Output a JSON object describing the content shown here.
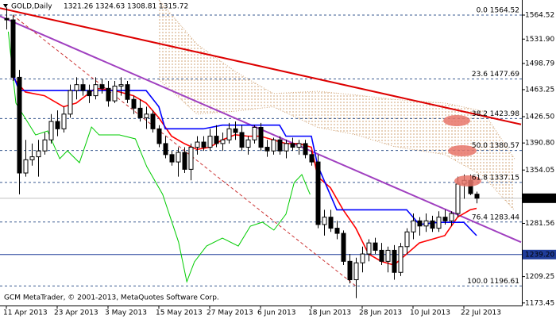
{
  "chart_data": {
    "type": "candlestick",
    "symbol": "GOLD,Daily",
    "footer": "GCM MetaTrader, © 2001-2013, MetaQuotes Software Corp.",
    "categories": [
      "11 Apr 2013",
      null,
      null,
      null,
      null,
      null,
      null,
      null,
      "23 Apr 2013",
      null,
      null,
      null,
      null,
      null,
      null,
      null,
      "3 May 2013",
      null,
      null,
      null,
      null,
      null,
      null,
      null,
      "15 May 2013",
      null,
      null,
      null,
      null,
      null,
      null,
      null,
      "27 May 2013",
      null,
      null,
      null,
      null,
      null,
      null,
      null,
      "6 Jun 2013",
      null,
      null,
      null,
      null,
      null,
      null,
      null,
      "18 Jun 2013",
      null,
      null,
      null,
      null,
      null,
      null,
      null,
      "28 Jun 2013",
      null,
      null,
      null,
      null,
      null,
      null,
      null,
      "10 Jul 2013",
      null,
      null,
      null,
      null,
      null,
      null,
      null,
      "22 Jul 2013",
      null,
      null
    ],
    "open": [
      1560,
      1558,
      1480,
      1350,
      1368,
      1372,
      1380,
      1395,
      1420,
      1410,
      1430,
      1462,
      1470,
      1462,
      1455,
      1470,
      1465,
      1448,
      1468,
      1470,
      1450,
      1438,
      1425,
      1430,
      1410,
      1390,
      1375,
      1365,
      1378,
      1355,
      1385,
      1392,
      1385,
      1400,
      1390,
      1395,
      1410,
      1405,
      1385,
      1395,
      1412,
      1385,
      1380,
      1395,
      1380,
      1390,
      1385,
      1390,
      1375,
      1365,
      1280,
      1290,
      1275,
      1268,
      1230,
      1205,
      1228,
      1240,
      1255,
      1245,
      1230,
      1245,
      1215,
      1250,
      1270,
      1285,
      1278,
      1285,
      1275,
      1290,
      1285,
      1295,
      1335,
      1340,
      1321.26
    ],
    "high": [
      1575,
      1565,
      1490,
      1395,
      1390,
      1395,
      1405,
      1430,
      1435,
      1440,
      1470,
      1480,
      1478,
      1470,
      1480,
      1478,
      1475,
      1475,
      1480,
      1475,
      1455,
      1450,
      1440,
      1435,
      1415,
      1400,
      1380,
      1385,
      1385,
      1390,
      1400,
      1400,
      1410,
      1415,
      1405,
      1418,
      1420,
      1415,
      1400,
      1415,
      1418,
      1395,
      1398,
      1400,
      1395,
      1398,
      1395,
      1395,
      1380,
      1375,
      1300,
      1300,
      1285,
      1272,
      1240,
      1235,
      1250,
      1260,
      1262,
      1255,
      1250,
      1252,
      1255,
      1275,
      1295,
      1290,
      1295,
      1292,
      1298,
      1300,
      1298,
      1345,
      1348,
      1348,
      1324.63
    ],
    "low": [
      1545,
      1475,
      1321,
      1345,
      1360,
      1345,
      1375,
      1390,
      1400,
      1405,
      1425,
      1450,
      1455,
      1445,
      1450,
      1458,
      1440,
      1445,
      1455,
      1445,
      1430,
      1420,
      1410,
      1405,
      1385,
      1370,
      1360,
      1345,
      1350,
      1340,
      1375,
      1380,
      1380,
      1385,
      1380,
      1390,
      1395,
      1380,
      1375,
      1390,
      1380,
      1372,
      1375,
      1375,
      1370,
      1380,
      1375,
      1370,
      1360,
      1275,
      1265,
      1270,
      1260,
      1225,
      1200,
      1180,
      1215,
      1230,
      1240,
      1225,
      1215,
      1205,
      1210,
      1240,
      1260,
      1265,
      1270,
      1270,
      1270,
      1280,
      1278,
      1290,
      1315,
      1320,
      1308.81
    ],
    "close": [
      1558,
      1480,
      1350,
      1368,
      1372,
      1380,
      1395,
      1420,
      1410,
      1430,
      1462,
      1470,
      1462,
      1455,
      1470,
      1465,
      1448,
      1468,
      1470,
      1450,
      1438,
      1425,
      1430,
      1410,
      1390,
      1375,
      1365,
      1378,
      1355,
      1385,
      1392,
      1385,
      1400,
      1390,
      1395,
      1410,
      1405,
      1385,
      1395,
      1412,
      1385,
      1380,
      1395,
      1380,
      1390,
      1385,
      1390,
      1375,
      1365,
      1280,
      1290,
      1275,
      1268,
      1230,
      1205,
      1228,
      1240,
      1255,
      1245,
      1230,
      1245,
      1215,
      1250,
      1270,
      1285,
      1278,
      1285,
      1275,
      1290,
      1285,
      1295,
      1335,
      1340,
      1322,
      1315.72
    ],
    "bull_color": "#ffffff",
    "bear_color": "#000000",
    "wick_color": "#000000",
    "ylim": [
      1170,
      1585
    ],
    "yticks": [
      1564.52,
      {
        "value": 1531.9,
        "label": "1531.90"
      },
      1498.79,
      1463.25,
      {
        "value": 1426.5,
        "label": "1426.50"
      },
      {
        "value": 1390.8,
        "label": "1390.80"
      },
      1354.05,
      1281.56,
      1209.25,
      1173.45
    ],
    "lines": [
      {
        "color": "#ff0000",
        "x": [
          1,
          3,
          6,
          9,
          11,
          14,
          17,
          20,
          22,
          24,
          26,
          28,
          30,
          32,
          34,
          36,
          38,
          40,
          42,
          44,
          46,
          48,
          49,
          51,
          53,
          55,
          57,
          59,
          61,
          63,
          65,
          67,
          69,
          71,
          73,
          74
        ],
        "values": [
          1480,
          1460,
          1455,
          1440,
          1445,
          1465,
          1462,
          1455,
          1445,
          1425,
          1400,
          1390,
          1382,
          1385,
          1395,
          1402,
          1400,
          1400,
          1395,
          1390,
          1390,
          1385,
          1345,
          1330,
          1300,
          1275,
          1240,
          1230,
          1225,
          1240,
          1255,
          1260,
          1265,
          1290,
          1300,
          1302
        ]
      },
      {
        "color": "#0000ff",
        "x": [
          1,
          2,
          10,
          14,
          17,
          22,
          24,
          25,
          31,
          34,
          43,
          44,
          48,
          49,
          52,
          56,
          63,
          65,
          68,
          70,
          72,
          74
        ],
        "values": [
          1485,
          1462,
          1462,
          1462,
          1462,
          1462,
          1440,
          1410,
          1410,
          1415,
          1415,
          1400,
          1400,
          1360,
          1300,
          1300,
          1300,
          1280,
          1283,
          1283,
          1283,
          1265
        ]
      },
      {
        "color": "#00cc00",
        "x": [
          0.3,
          1.5,
          4.6,
          6.5,
          8.4,
          9.6,
          11.5,
          13.4,
          14.6,
          17.8,
          20.3,
          22.1,
          24.6,
          27.1,
          28.4,
          29.6,
          31.5,
          34,
          36.5,
          38.4,
          40.3,
          42.1,
          44,
          45.3,
          46.5,
          47.8
        ],
        "values": [
          1541.9,
          1444.9,
          1401.7,
          1407.1,
          1369.4,
          1380.2,
          1364,
          1412.5,
          1401.7,
          1401.7,
          1396.4,
          1358.6,
          1320.9,
          1256.2,
          1202.3,
          1229.3,
          1250.8,
          1261.6,
          1250.8,
          1277.8,
          1283.2,
          1272.4,
          1294,
          1337.1,
          1347.8,
          1320.9
        ]
      }
    ],
    "cloud": {
      "color": "#d2a679",
      "x": [
        24,
        30,
        36,
        42,
        49,
        55,
        61,
        69,
        75,
        80
      ],
      "upper": [
        1585,
        1525,
        1488,
        1458,
        1461,
        1456,
        1450,
        1445,
        1434,
        1369
      ],
      "lower": [
        1477,
        1430,
        1434,
        1440,
        1412,
        1402,
        1386,
        1375,
        1346,
        1299
      ]
    },
    "trendlines": [
      {
        "color": "#dd0000",
        "width": 2,
        "x": [
          -1,
          81
        ],
        "values": [
          1574,
          1416
        ]
      },
      {
        "color": "#a040c0",
        "width": 2,
        "x": [
          -1,
          81
        ],
        "values": [
          1563,
          1256
        ]
      },
      {
        "color": "#cc3333",
        "width": 1,
        "dashed": true,
        "x": [
          1,
          55
        ],
        "values": [
          1564.52,
          1196.61
        ]
      }
    ],
    "fibo_color": "#3a5a90",
    "fibo": [
      {
        "value": 1564.52,
        "label": "0.0 1564.52"
      },
      {
        "value": 1477.69,
        "label": "23.6 1477.69"
      },
      {
        "value": 1423.98,
        "label": "38.2 1423.98"
      },
      {
        "value": 1380.57,
        "label": "50.0 1380.57"
      },
      {
        "value": 1337.15,
        "label": "61.8 1337.15"
      },
      {
        "value": 1283.44,
        "label": "76.4 1283.44"
      },
      {
        "value": 1196.61,
        "label": "100.0 1196.61"
      }
    ],
    "hline": {
      "value": 1239.2,
      "label": "1239.20",
      "color": "#1f3c99"
    }
  }
}
